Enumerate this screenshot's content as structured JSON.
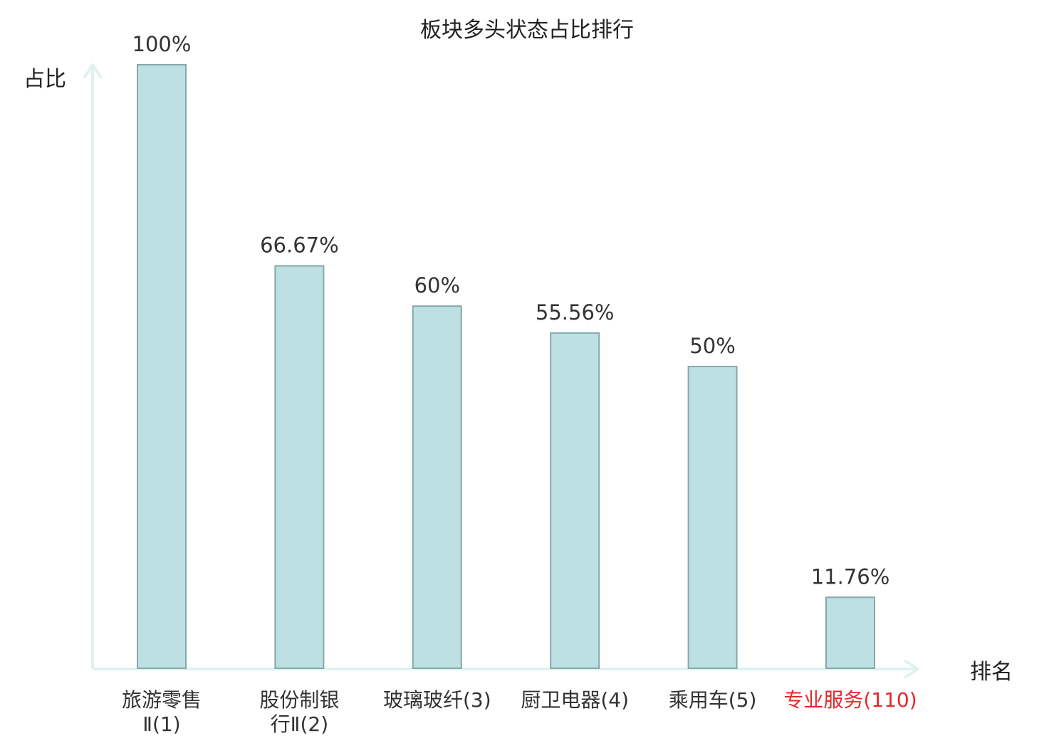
{
  "chart_data": {
    "type": "bar",
    "title": "板块多头状态占比排行",
    "xlabel": "排名",
    "ylabel": "占比",
    "categories": [
      [
        "旅游零售",
        "Ⅱ(1)"
      ],
      [
        "股份制银",
        "行Ⅱ(2)"
      ],
      [
        "玻璃玻纤(3)"
      ],
      [
        "厨卫电器(4)"
      ],
      [
        "乘用车(5)"
      ],
      [
        "专业服务(110)"
      ]
    ],
    "values": [
      100,
      66.67,
      60,
      55.56,
      50,
      11.76
    ],
    "value_labels": [
      "100%",
      "66.67%",
      "60%",
      "55.56%",
      "50%",
      "11.76%"
    ],
    "highlight_index": 5,
    "ylim": [
      0,
      100
    ],
    "grid": false,
    "legend": "none"
  },
  "colors": {
    "bar_fill": "#bde0e2",
    "bar_stroke": "#86a8ab",
    "axis": "#dff2ef",
    "text": "#333333",
    "highlight_text": "#e8262b"
  }
}
